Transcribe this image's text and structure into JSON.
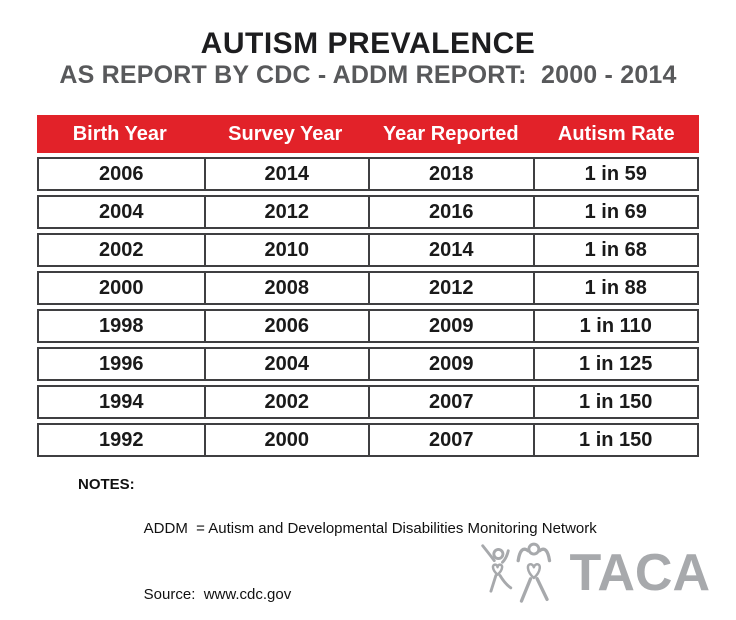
{
  "header": {
    "title": "AUTISM PREVALENCE",
    "subtitle": "AS REPORT BY CDC - ADDM REPORT:  2000 - 2014"
  },
  "chart_data": {
    "type": "table",
    "title": "AUTISM PREVALENCE",
    "subtitle": "AS REPORT BY CDC - ADDM REPORT:  2000 - 2014",
    "columns": [
      "Birth Year",
      "Survey Year",
      "Year Reported",
      "Autism Rate"
    ],
    "rows": [
      [
        "2006",
        "2014",
        "2018",
        "1 in 59"
      ],
      [
        "2004",
        "2012",
        "2016",
        "1 in 69"
      ],
      [
        "2002",
        "2010",
        "2014",
        "1 in 68"
      ],
      [
        "2000",
        "2008",
        "2012",
        "1 in 88"
      ],
      [
        "1998",
        "2006",
        "2009",
        "1 in 110"
      ],
      [
        "1996",
        "2004",
        "2009",
        "1 in 125"
      ],
      [
        "1994",
        "2002",
        "2007",
        "1 in 150"
      ],
      [
        "1992",
        "2000",
        "2007",
        "1 in 150"
      ]
    ],
    "notes": "ADDM = Autism and Developmental Disabilities Monitoring Network",
    "source": "www.cdc.gov"
  },
  "notes": {
    "label": "NOTES:",
    "line1": "ADDM  = Autism and Developmental Disabilities Monitoring Network",
    "line2": "Source:  www.cdc.gov"
  },
  "logo": {
    "text": "TACA",
    "figures_icon": "taca-dancing-figures-icon"
  },
  "colors": {
    "header_red": "#e22229",
    "subtitle_gray": "#58595b",
    "row_border": "#3f3f41",
    "logo_gray": "#a7a9ac",
    "title_black": "#1d1d1f"
  }
}
